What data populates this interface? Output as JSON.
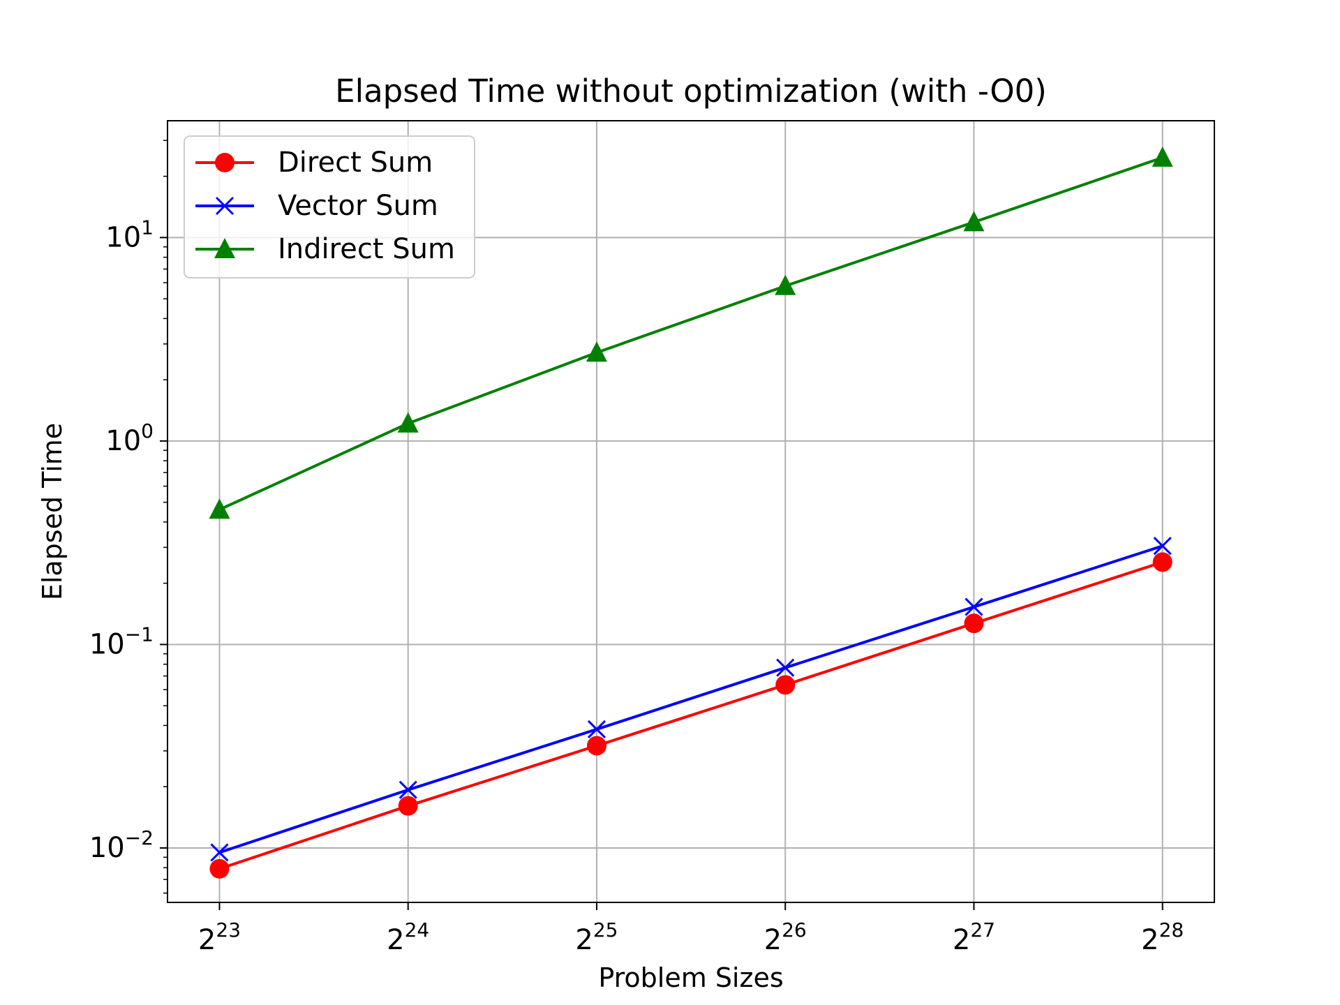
{
  "chart_data": {
    "type": "line",
    "title": "Elapsed Time without optimization (with -O0)",
    "xlabel": "Problem Sizes",
    "ylabel": "Elapsed Time",
    "x_scale": "log2",
    "y_scale": "log10",
    "x": [
      8388608,
      16777216,
      33554432,
      67108864,
      134217728,
      268435456
    ],
    "x_ticks": [
      {
        "base": "2",
        "exp": "23"
      },
      {
        "base": "2",
        "exp": "24"
      },
      {
        "base": "2",
        "exp": "25"
      },
      {
        "base": "2",
        "exp": "26"
      },
      {
        "base": "2",
        "exp": "27"
      },
      {
        "base": "2",
        "exp": "28"
      }
    ],
    "y_ticks": [
      {
        "base": "10",
        "exp": "−2"
      },
      {
        "base": "10",
        "exp": "−1"
      },
      {
        "base": "10",
        "exp": "0"
      },
      {
        "base": "10",
        "exp": "1"
      }
    ],
    "xlim": [
      6930000,
      324800000
    ],
    "ylim": [
      0.0054,
      37.5
    ],
    "grid": true,
    "legend_position": "upper-left",
    "series": [
      {
        "name": "Direct Sum",
        "color": "#ff0000",
        "marker": "circle",
        "values": [
          0.0079,
          0.0161,
          0.0318,
          0.0633,
          0.127,
          0.254
        ]
      },
      {
        "name": "Vector Sum",
        "color": "#0000ff",
        "marker": "x",
        "values": [
          0.0095,
          0.0193,
          0.0383,
          0.0769,
          0.153,
          0.305
        ]
      },
      {
        "name": "Indirect Sum",
        "color": "#008000",
        "marker": "triangle",
        "values": [
          0.46,
          1.22,
          2.72,
          5.78,
          11.9,
          24.7
        ]
      }
    ]
  }
}
